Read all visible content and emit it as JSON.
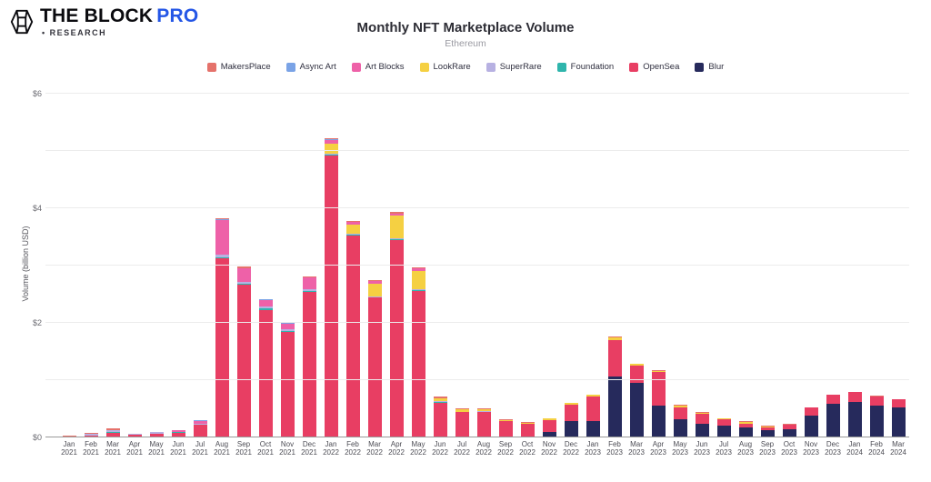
{
  "header": {
    "brand": "THE BLOCK",
    "brand_suffix": "PRO",
    "brand_sub": "• RESEARCH"
  },
  "chart_data": {
    "type": "bar",
    "stacked": true,
    "title": "Monthly NFT Marketplace Volume",
    "subtitle": "Ethereum",
    "ylabel": "Volume (billion USD)",
    "ylim": [
      0,
      6
    ],
    "unit": "billion USD",
    "grid": true,
    "gridlines": [
      0,
      1,
      2,
      3,
      4,
      5,
      6
    ],
    "yticks": [
      0,
      2,
      4,
      6
    ],
    "ytick_labels": [
      "$0",
      "$2",
      "$4",
      "$6"
    ],
    "legend_position": "top",
    "stack_order_bottom_to_top": [
      "Blur",
      "OpenSea",
      "Foundation",
      "SuperRare",
      "LookRare",
      "Art Blocks",
      "Async Art",
      "MakersPlace"
    ],
    "categories": [
      "Jan 2021",
      "Feb 2021",
      "Mar 2021",
      "Apr 2021",
      "May 2021",
      "Jun 2021",
      "Jul 2021",
      "Aug 2021",
      "Sep 2021",
      "Oct 2021",
      "Nov 2021",
      "Dec 2021",
      "Jan 2022",
      "Feb 2022",
      "Mar 2022",
      "Apr 2022",
      "May 2022",
      "Jun 2022",
      "Jul 2022",
      "Aug 2022",
      "Sep 2022",
      "Oct 2022",
      "Nov 2022",
      "Dec 2022",
      "Jan 2023",
      "Feb 2023",
      "Mar 2023",
      "Apr 2023",
      "May 2023",
      "Jun 2023",
      "Jul 2023",
      "Aug 2023",
      "Sep 2023",
      "Oct 2023",
      "Nov 2023",
      "Dec 2023",
      "Jan 2024",
      "Feb 2024",
      "Mar 2024"
    ],
    "series": [
      {
        "name": "MakersPlace",
        "color": "#e5726b",
        "values": [
          0.01,
          0.02,
          0.04,
          0.01,
          0.01,
          0.01,
          0.01,
          0.02,
          0.02,
          0.01,
          0.01,
          0.01,
          0.02,
          0.02,
          0.02,
          0.02,
          0.02,
          0.02,
          0.01,
          0.01,
          0.01,
          0.01,
          0.01,
          0.01,
          0.01,
          0.02,
          0.01,
          0.01,
          0.02,
          0.01,
          0.01,
          0.02,
          0.02,
          0.01,
          0.01,
          0.01,
          0.01,
          0.01,
          0.01
        ]
      },
      {
        "name": "Async Art",
        "color": "#7aa3e6",
        "values": [
          0,
          0,
          0,
          0,
          0,
          0,
          0.01,
          0.02,
          0.01,
          0.01,
          0.01,
          0.01,
          0.01,
          0,
          0,
          0,
          0,
          0,
          0,
          0,
          0,
          0,
          0,
          0,
          0,
          0,
          0,
          0,
          0,
          0,
          0,
          0,
          0,
          0,
          0,
          0,
          0,
          0,
          0
        ]
      },
      {
        "name": "Art Blocks",
        "color": "#ee61a8",
        "values": [
          0,
          0,
          0,
          0,
          0,
          0.02,
          0.05,
          0.6,
          0.23,
          0.12,
          0.1,
          0.2,
          0.06,
          0.05,
          0.04,
          0.04,
          0.04,
          0.01,
          0.01,
          0.01,
          0,
          0,
          0,
          0,
          0,
          0,
          0,
          0,
          0,
          0,
          0,
          0,
          0,
          0,
          0,
          0,
          0,
          0,
          0
        ]
      },
      {
        "name": "LookRare",
        "color": "#f5d042",
        "values": [
          0,
          0,
          0,
          0,
          0,
          0,
          0,
          0,
          0,
          0,
          0,
          0,
          0.17,
          0.15,
          0.23,
          0.4,
          0.33,
          0.05,
          0.04,
          0.03,
          0.02,
          0.02,
          0.03,
          0.03,
          0.03,
          0.04,
          0.02,
          0.02,
          0.03,
          0.02,
          0.01,
          0.03,
          0.02,
          0.01,
          0,
          0,
          0,
          0,
          0
        ]
      },
      {
        "name": "SuperRare",
        "color": "#b7b1e2",
        "values": [
          0.01,
          0.02,
          0.02,
          0.01,
          0.02,
          0.01,
          0.01,
          0.04,
          0.03,
          0.03,
          0.03,
          0.03,
          0.02,
          0.02,
          0.01,
          0.01,
          0.01,
          0.01,
          0.01,
          0.01,
          0.01,
          0,
          0,
          0,
          0,
          0,
          0,
          0,
          0,
          0,
          0,
          0,
          0,
          0,
          0,
          0,
          0,
          0,
          0
        ]
      },
      {
        "name": "Foundation",
        "color": "#2fb5ac",
        "values": [
          0,
          0.01,
          0.02,
          0.01,
          0.01,
          0.01,
          0.01,
          0.02,
          0.02,
          0.02,
          0.02,
          0.02,
          0.02,
          0.01,
          0.01,
          0.01,
          0.01,
          0.01,
          0,
          0,
          0,
          0,
          0,
          0,
          0,
          0,
          0,
          0,
          0,
          0,
          0,
          0,
          0,
          0,
          0,
          0,
          0,
          0,
          0
        ]
      },
      {
        "name": "OpenSea",
        "color": "#e83e63",
        "values": [
          0.01,
          0.03,
          0.08,
          0.04,
          0.06,
          0.08,
          0.22,
          3.13,
          2.67,
          2.23,
          1.84,
          2.54,
          4.92,
          3.53,
          2.44,
          3.45,
          2.56,
          0.61,
          0.44,
          0.45,
          0.28,
          0.24,
          0.2,
          0.29,
          0.43,
          0.64,
          0.3,
          0.58,
          0.2,
          0.17,
          0.12,
          0.07,
          0.04,
          0.07,
          0.14,
          0.15,
          0.17,
          0.17,
          0.14
        ]
      },
      {
        "name": "Blur",
        "color": "#262a5c",
        "values": [
          0,
          0,
          0,
          0,
          0,
          0,
          0,
          0,
          0,
          0,
          0,
          0,
          0,
          0,
          0,
          0,
          0,
          0,
          0,
          0,
          0,
          0,
          0.1,
          0.28,
          0.28,
          1.06,
          0.96,
          0.56,
          0.32,
          0.24,
          0.2,
          0.17,
          0.13,
          0.15,
          0.38,
          0.59,
          0.62,
          0.55,
          0.52
        ]
      }
    ]
  }
}
